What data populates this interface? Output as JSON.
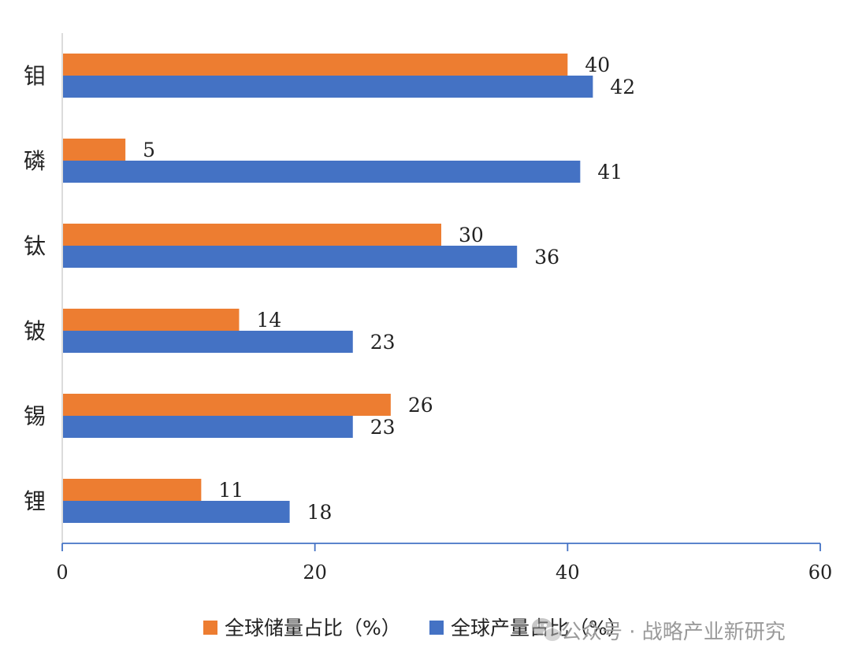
{
  "chart_data": {
    "type": "bar",
    "orientation": "horizontal",
    "categories": [
      "钼",
      "磷",
      "钛",
      "铍",
      "锡",
      "锂"
    ],
    "series": [
      {
        "name": "全球储量占比（%）",
        "color": "#ED7D31",
        "values": [
          40,
          5,
          30,
          14,
          26,
          11
        ]
      },
      {
        "name": "全球产量占比（%）",
        "color": "#4472C4",
        "values": [
          42,
          41,
          36,
          23,
          23,
          18
        ]
      }
    ],
    "xlim": [
      0,
      60
    ],
    "xticks": [
      0,
      20,
      40,
      60
    ],
    "grid": false,
    "data_labels": true,
    "legend_position": "bottom"
  },
  "watermark": {
    "icon": "wechat-icon",
    "text": "公众号 · 战略产业新研究"
  }
}
